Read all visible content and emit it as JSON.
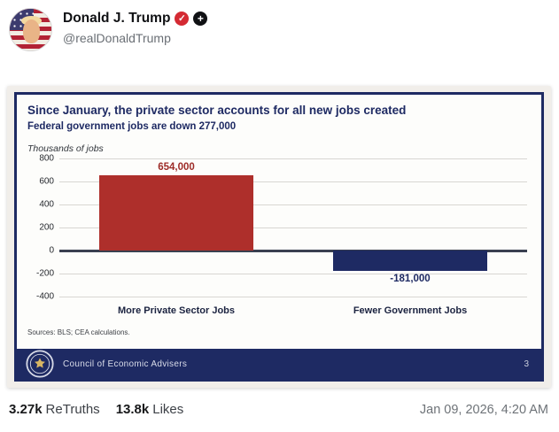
{
  "post": {
    "author_name": "Donald J. Trump",
    "handle": "@realDonaldTrump",
    "verified_icon": "✓",
    "follow_icon": "+",
    "stats": {
      "retruths_count": "3.27k",
      "retruths_label": "ReTruths",
      "likes_count": "13.8k",
      "likes_label": "Likes"
    },
    "timestamp": "Jan 09, 2026, 4:20 AM"
  },
  "slide": {
    "title": "Since January, the private sector accounts for all new jobs created",
    "subtitle": "Federal government jobs are down 277,000",
    "axis_note": "Thousands of jobs",
    "sources": "Sources: BLS; CEA calculations.",
    "footer_org": "Council of Economic Advisers",
    "footer_page": "3",
    "colors": {
      "navy": "#1e2a63",
      "red": "#ae2f2b",
      "slide_background": "#fdfdfb"
    }
  },
  "chart_data": {
    "type": "bar",
    "title": "Since January, the private sector accounts for all new jobs created",
    "subtitle": "Federal government jobs are down 277,000",
    "ylabel": "Thousands of jobs",
    "units": "thousands of jobs",
    "categories": [
      "More Private Sector Jobs",
      "Fewer Government Jobs"
    ],
    "values": [
      654,
      -181
    ],
    "value_labels": [
      "654,000",
      "-181,000"
    ],
    "bar_colors": [
      "#ae2f2b",
      "#1e2a63"
    ],
    "label_colors": [
      "#9d2b27",
      "#1e2a63"
    ],
    "ylim": [
      -400,
      800
    ],
    "yticks": [
      800,
      600,
      400,
      200,
      0,
      -200,
      -400
    ],
    "grid": true,
    "legend": false,
    "source_note": "Sources: BLS; CEA calculations."
  }
}
